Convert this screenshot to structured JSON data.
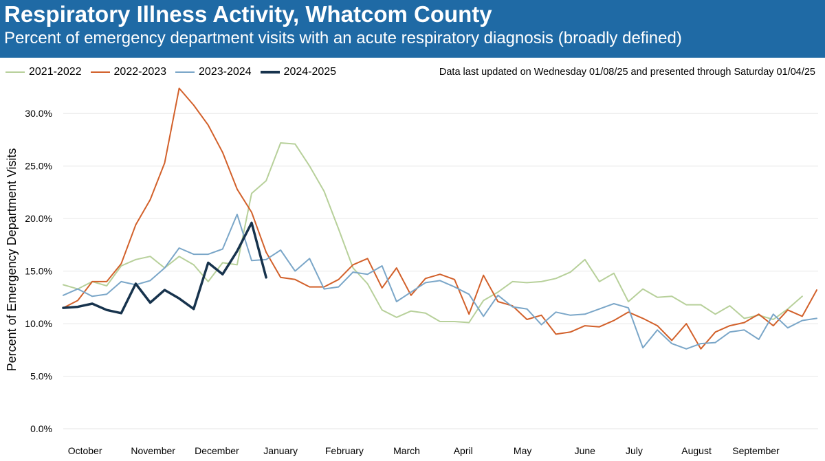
{
  "header": {
    "title": "Respiratory Illness Activity, Whatcom County",
    "subtitle": "Percent of emergency department visits with an acute respiratory diagnosis (broadly defined)"
  },
  "note": "Data last updated on Wednesday 01/08/25 and presented through Saturday 01/04/25",
  "colors": {
    "header_bg": "#1f6aa5",
    "2021-2022": "#b7d09a",
    "2022-2023": "#d2602a",
    "2023-2024": "#7aa6c8",
    "2024-2025": "#17334d"
  },
  "chart_data": {
    "type": "line",
    "title": "Respiratory Illness Activity, Whatcom County",
    "subtitle": "Percent of emergency department visits with an acute respiratory diagnosis (broadly defined)",
    "xlabel": "",
    "ylabel": "Percent of Emergency Department Visits",
    "ylim": [
      0,
      32.5
    ],
    "yticks": [
      0,
      5,
      10,
      15,
      20,
      25,
      30
    ],
    "ytick_labels": [
      "0.0%",
      "5.0%",
      "10.0%",
      "15.0%",
      "20.0%",
      "25.0%",
      "30.0%"
    ],
    "x_weeks": 52,
    "month_labels": [
      {
        "label": "October",
        "week": 1.5
      },
      {
        "label": "November",
        "week": 6.2
      },
      {
        "label": "December",
        "week": 10.6
      },
      {
        "label": "January",
        "week": 15.0
      },
      {
        "label": "February",
        "week": 19.4
      },
      {
        "label": "March",
        "week": 23.7
      },
      {
        "label": "April",
        "week": 27.6
      },
      {
        "label": "May",
        "week": 31.7
      },
      {
        "label": "June",
        "week": 36.0
      },
      {
        "label": "July",
        "week": 39.4
      },
      {
        "label": "August",
        "week": 43.7
      },
      {
        "label": "September",
        "week": 47.8
      }
    ],
    "grid": true,
    "legend_position": "top-left",
    "series": [
      {
        "name": "2021-2022",
        "values": [
          13.7,
          13.3,
          14.0,
          13.6,
          15.5,
          16.1,
          16.4,
          15.3,
          16.4,
          15.6,
          14.0,
          15.8,
          15.6,
          22.4,
          23.6,
          27.2,
          27.1,
          25.0,
          22.6,
          19.0,
          15.3,
          13.8,
          11.3,
          10.6,
          11.2,
          11.0,
          10.2,
          10.2,
          10.1,
          12.2,
          13.0,
          14.0,
          13.9,
          14.0,
          14.3,
          14.9,
          16.1,
          14.0,
          14.8,
          12.1,
          13.3,
          12.5,
          12.6,
          11.8,
          11.8,
          10.9,
          11.7,
          10.5,
          10.8,
          10.4,
          11.4,
          12.6
        ]
      },
      {
        "name": "2022-2023",
        "values": [
          11.5,
          12.2,
          14.0,
          14.0,
          15.7,
          19.4,
          21.8,
          25.3,
          32.4,
          30.8,
          28.9,
          26.3,
          22.8,
          20.6,
          16.8,
          14.4,
          14.2,
          13.5,
          13.5,
          14.2,
          15.6,
          16.2,
          13.4,
          15.3,
          12.7,
          14.3,
          14.7,
          14.2,
          10.9,
          14.6,
          12.1,
          11.7,
          10.4,
          10.8,
          9.0,
          9.2,
          9.8,
          9.7,
          10.3,
          11.1,
          10.5,
          9.8,
          8.4,
          10.0,
          7.6,
          9.2,
          9.8,
          10.1,
          10.9,
          9.8,
          11.3,
          10.7,
          13.2
        ]
      },
      {
        "name": "2023-2024",
        "values": [
          12.7,
          13.3,
          12.6,
          12.8,
          14.0,
          13.7,
          14.1,
          15.3,
          17.2,
          16.6,
          16.6,
          17.1,
          20.4,
          16.0,
          16.1,
          17.0,
          15.0,
          16.2,
          13.3,
          13.5,
          14.9,
          14.7,
          15.5,
          12.1,
          13.0,
          13.9,
          14.1,
          13.5,
          12.8,
          10.7,
          12.7,
          11.6,
          11.4,
          9.9,
          11.1,
          10.8,
          10.9,
          11.4,
          11.9,
          11.5,
          7.7,
          9.4,
          8.1,
          7.6,
          8.1,
          8.2,
          9.2,
          9.4,
          8.5,
          10.9,
          9.6,
          10.3,
          10.5
        ]
      },
      {
        "name": "2024-2025",
        "values": [
          11.5,
          11.6,
          11.9,
          11.3,
          11.0,
          13.8,
          12.0,
          13.2,
          12.4,
          11.4,
          15.8,
          14.7,
          16.9,
          19.6,
          14.4
        ]
      }
    ]
  }
}
